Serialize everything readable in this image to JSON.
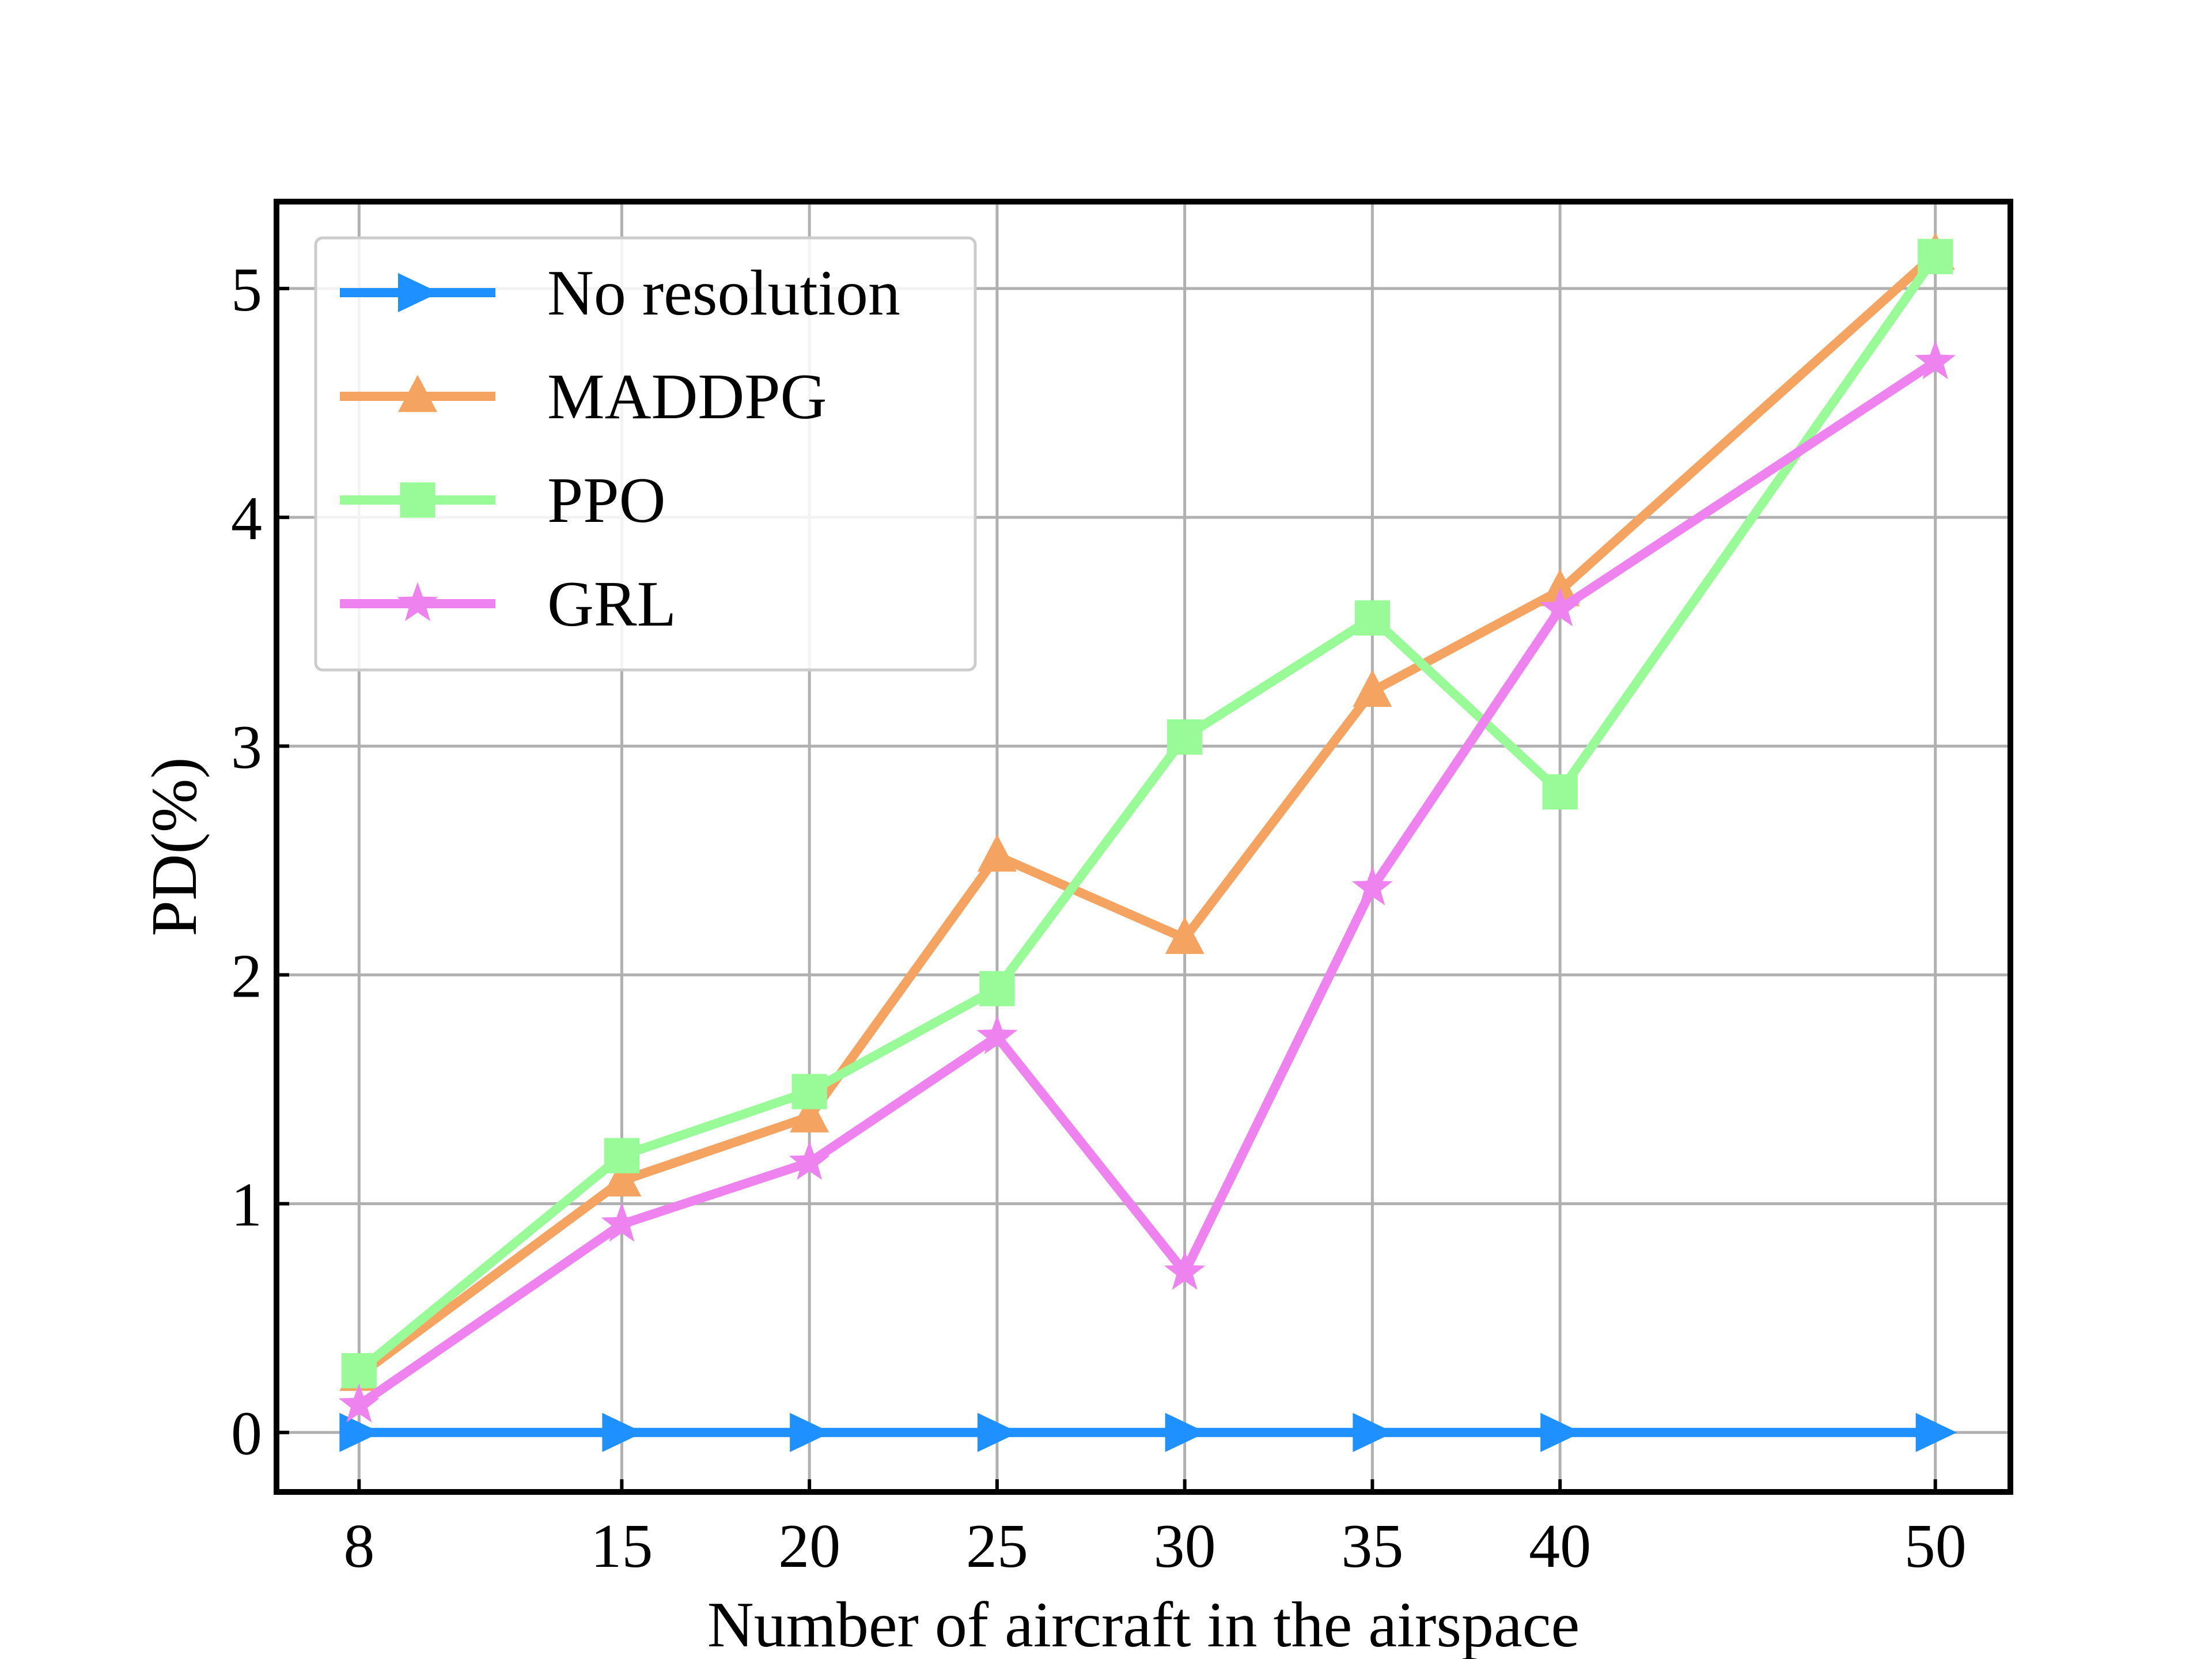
{
  "chart_data": {
    "type": "line",
    "xlabel": "Number of aircraft in the airspace",
    "ylabel": "PD(%)",
    "x": [
      8,
      15,
      20,
      25,
      30,
      35,
      40,
      50
    ],
    "xlim": [
      5.8,
      52.0
    ],
    "ylim": [
      -0.26,
      5.38
    ],
    "xticks": [
      8,
      15,
      20,
      25,
      30,
      35,
      40,
      50
    ],
    "yticks": [
      0,
      1,
      2,
      3,
      4,
      5
    ],
    "grid": true,
    "legend_position": "top-left",
    "series": [
      {
        "name": "No resolution",
        "marker": "triangle-right",
        "color": "#1e90ff",
        "values": [
          0,
          0,
          0,
          0,
          0,
          0,
          0,
          0
        ]
      },
      {
        "name": "MADDPG",
        "marker": "triangle-up",
        "color": "#f4a460",
        "values": [
          0.25,
          1.1,
          1.38,
          2.52,
          2.16,
          3.24,
          3.68,
          5.15
        ]
      },
      {
        "name": "PPO",
        "marker": "square",
        "color": "#98fb98",
        "values": [
          0.27,
          1.21,
          1.49,
          1.94,
          3.04,
          3.56,
          2.8,
          5.14
        ]
      },
      {
        "name": "GRL",
        "marker": "star",
        "color": "#ee82ee",
        "values": [
          0.12,
          0.91,
          1.18,
          1.73,
          0.7,
          2.38,
          3.6,
          4.68
        ]
      }
    ]
  }
}
